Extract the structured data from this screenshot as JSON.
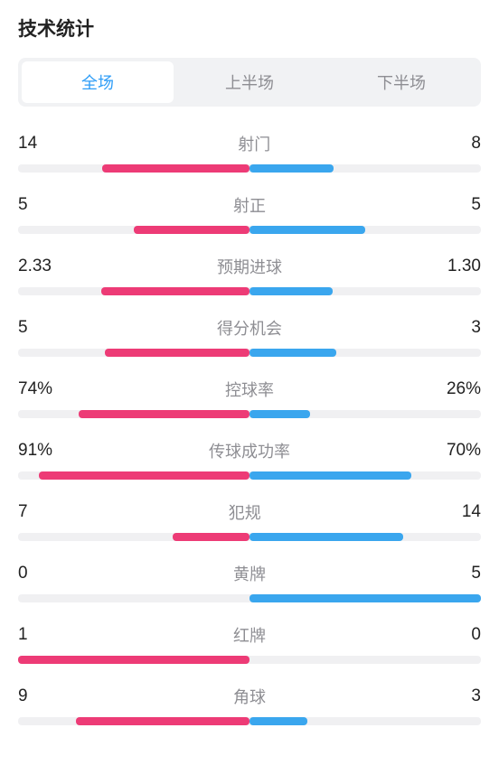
{
  "title": "技术统计",
  "colors": {
    "left_bar": "#ed3b76",
    "right_bar": "#3aa6ee",
    "track": "#f0f0f2",
    "tab_bg": "#f1f2f4",
    "tab_active_bg": "#ffffff",
    "tab_active_text": "#2e9df7",
    "tab_inactive_text": "#8e8e93",
    "label_text": "#8e8e93",
    "value_text": "#222222"
  },
  "tabs": [
    {
      "label": "全场",
      "active": true
    },
    {
      "label": "上半场",
      "active": false
    },
    {
      "label": "下半场",
      "active": false
    }
  ],
  "stats": [
    {
      "label": "射门",
      "left_display": "14",
      "right_display": "8",
      "left_pct": 31.8,
      "right_pct": 18.2
    },
    {
      "label": "射正",
      "left_display": "5",
      "right_display": "5",
      "left_pct": 25.0,
      "right_pct": 25.0
    },
    {
      "label": "预期进球",
      "left_display": "2.33",
      "right_display": "1.30",
      "left_pct": 32.1,
      "right_pct": 17.9
    },
    {
      "label": "得分机会",
      "left_display": "5",
      "right_display": "3",
      "left_pct": 31.3,
      "right_pct": 18.7
    },
    {
      "label": "控球率",
      "left_display": "74%",
      "right_display": "26%",
      "left_pct": 37.0,
      "right_pct": 13.0
    },
    {
      "label": "传球成功率",
      "left_display": "91%",
      "right_display": "70%",
      "left_pct": 45.5,
      "right_pct": 35.0
    },
    {
      "label": "犯规",
      "left_display": "7",
      "right_display": "14",
      "left_pct": 16.7,
      "right_pct": 33.3
    },
    {
      "label": "黄牌",
      "left_display": "0",
      "right_display": "5",
      "left_pct": 0.0,
      "right_pct": 50.0
    },
    {
      "label": "红牌",
      "left_display": "1",
      "right_display": "0",
      "left_pct": 50.0,
      "right_pct": 0.0
    },
    {
      "label": "角球",
      "left_display": "9",
      "right_display": "3",
      "left_pct": 37.5,
      "right_pct": 12.5
    }
  ]
}
